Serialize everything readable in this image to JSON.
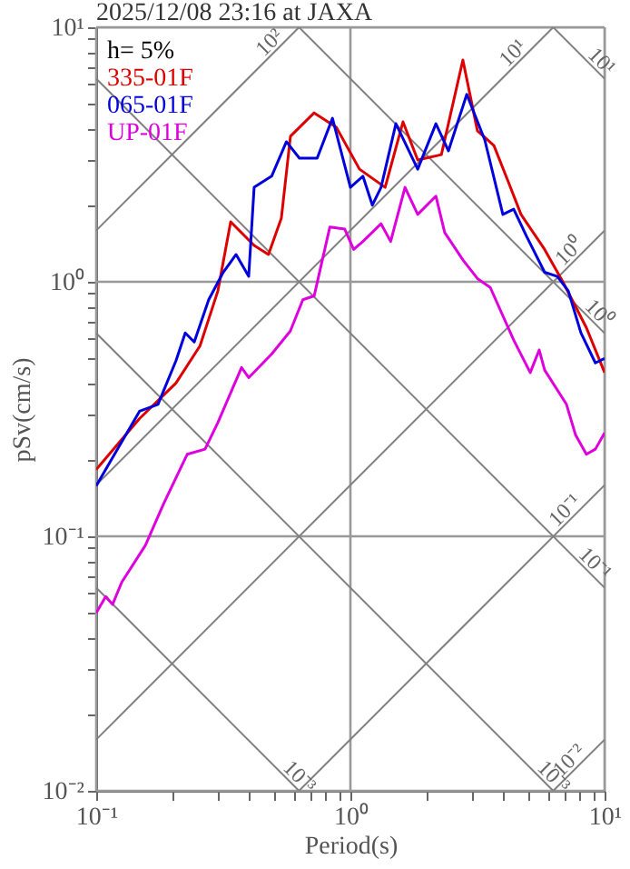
{
  "chart_data": {
    "type": "line",
    "title": "2025/12/08 23:16 at JAXA",
    "xlabel": "Period(s)",
    "ylabel": "pSv(cm/s)",
    "log": "xy",
    "grid": true,
    "legend": "top left",
    "line_style": "solid",
    "marker": "none",
    "xlim": [
      0.1,
      10
    ],
    "ylim": [
      0.01,
      10
    ],
    "xticks": [
      {
        "value": 0.1,
        "label": "10⁻¹"
      },
      {
        "value": 0.2,
        "label": null
      },
      {
        "value": 0.3,
        "label": null
      },
      {
        "value": 0.4,
        "label": null
      },
      {
        "value": 0.5,
        "label": null
      },
      {
        "value": 0.6,
        "label": null
      },
      {
        "value": 0.7,
        "label": null
      },
      {
        "value": 0.8,
        "label": null
      },
      {
        "value": 0.9,
        "label": null
      },
      {
        "value": 1,
        "label": "10⁰"
      },
      {
        "value": 2,
        "label": null
      },
      {
        "value": 3,
        "label": null
      },
      {
        "value": 4,
        "label": null
      },
      {
        "value": 5,
        "label": null
      },
      {
        "value": 6,
        "label": null
      },
      {
        "value": 7,
        "label": null
      },
      {
        "value": 8,
        "label": null
      },
      {
        "value": 9,
        "label": null
      },
      {
        "value": 10,
        "label": "10¹"
      }
    ],
    "yticks": [
      {
        "value": 0.01,
        "label": "10⁻²"
      },
      {
        "value": 0.02,
        "label": null
      },
      {
        "value": 0.03,
        "label": null
      },
      {
        "value": 0.04,
        "label": null
      },
      {
        "value": 0.05,
        "label": null
      },
      {
        "value": 0.06,
        "label": null
      },
      {
        "value": 0.07,
        "label": null
      },
      {
        "value": 0.08,
        "label": null
      },
      {
        "value": 0.09,
        "label": null
      },
      {
        "value": 0.1,
        "label": "10⁻¹"
      },
      {
        "value": 0.2,
        "label": null
      },
      {
        "value": 0.3,
        "label": null
      },
      {
        "value": 0.4,
        "label": null
      },
      {
        "value": 0.5,
        "label": null
      },
      {
        "value": 0.6,
        "label": null
      },
      {
        "value": 0.7,
        "label": null
      },
      {
        "value": 0.8,
        "label": null
      },
      {
        "value": 0.9,
        "label": null
      },
      {
        "value": 1,
        "label": "10⁰"
      },
      {
        "value": 2,
        "label": null
      },
      {
        "value": 3,
        "label": null
      },
      {
        "value": 4,
        "label": null
      },
      {
        "value": 5,
        "label": null
      },
      {
        "value": 6,
        "label": null
      },
      {
        "value": 7,
        "label": null
      },
      {
        "value": 8,
        "label": null
      },
      {
        "value": 9,
        "label": null
      },
      {
        "value": 10,
        "label": "10¹"
      }
    ],
    "annotations": [
      "h= 5%",
      {
        "text": "10²",
        "x": 0.55,
        "y": 8.75
      },
      {
        "text": "10¹",
        "x": 5.0,
        "y": 7.96
      },
      {
        "text": "10¹",
        "x": 8.5,
        "y": 7.39
      },
      {
        "text": "10⁰",
        "x": 8.3,
        "y": 1.32
      },
      {
        "text": "10⁰",
        "x": 8.3,
        "y": 0.757
      },
      {
        "text": "10⁻¹",
        "x": 8.0,
        "y": 0.127
      },
      {
        "text": "10⁻¹",
        "x": 8.0,
        "y": 0.0785
      },
      {
        "text": "10⁻³",
        "x": 0.55,
        "y": 0.0114
      },
      {
        "text": "10⁻³",
        "x": 5.5,
        "y": 0.0114
      },
      {
        "text": "10⁻²",
        "x": 8.3,
        "y": 0.0132
      }
    ],
    "series": [
      {
        "type": "line",
        "color": "#808080",
        "x": [
          0.1,
          0.628
        ],
        "values": [
          1.59,
          10
        ]
      },
      {
        "type": "line",
        "color": "#808080",
        "x": [
          0.1,
          6.28
        ],
        "values": [
          0.159,
          10
        ]
      },
      {
        "type": "line",
        "color": "#808080",
        "x": [
          0.1,
          10
        ],
        "values": [
          0.0159,
          1.59
        ]
      },
      {
        "type": "line",
        "color": "#808080",
        "x": [
          0.628,
          10
        ],
        "values": [
          0.01,
          0.159
        ]
      },
      {
        "type": "line",
        "color": "#808080",
        "x": [
          6.28,
          10
        ],
        "values": [
          0.01,
          0.0159
        ]
      },
      {
        "type": "line",
        "color": "#808080",
        "x": [
          6.28,
          10
        ],
        "values": [
          10,
          6.28
        ]
      },
      {
        "type": "line",
        "color": "#808080",
        "x": [
          0.628,
          10
        ],
        "values": [
          10,
          0.628
        ]
      },
      {
        "type": "line",
        "color": "#808080",
        "x": [
          0.1,
          10
        ],
        "values": [
          6.28,
          0.0628
        ]
      },
      {
        "type": "line",
        "color": "#808080",
        "x": [
          0.1,
          6.28
        ],
        "values": [
          0.628,
          0.01
        ]
      },
      {
        "type": "line",
        "color": "#808080",
        "x": [
          0.1,
          0.628
        ],
        "values": [
          0.0628,
          0.01
        ]
      },
      {
        "name": "335-01F",
        "color": "#dd0000",
        "x": [
          0.1,
          0.148,
          0.206,
          0.256,
          0.301,
          0.338,
          0.418,
          0.476,
          0.535,
          0.581,
          0.72,
          0.88,
          1.086,
          1.37,
          1.61,
          1.84,
          2.28,
          2.77,
          3.16,
          3.67,
          4.18,
          4.69,
          5.81,
          6.85,
          8.48,
          10
        ],
        "values": [
          0.183,
          0.29,
          0.4,
          0.56,
          0.92,
          1.72,
          1.39,
          1.28,
          1.78,
          3.73,
          4.61,
          4.05,
          2.77,
          2.35,
          4.25,
          3.01,
          3.16,
          7.44,
          3.92,
          3.43,
          2.47,
          1.84,
          1.34,
          1.0,
          0.66,
          0.44
        ]
      },
      {
        "name": "065-01F",
        "color": "#0000dd",
        "x": [
          0.1,
          0.148,
          0.175,
          0.206,
          0.224,
          0.243,
          0.277,
          0.316,
          0.355,
          0.398,
          0.418,
          0.49,
          0.56,
          0.63,
          0.74,
          0.85,
          1.0,
          1.12,
          1.22,
          1.32,
          1.51,
          1.84,
          2.17,
          2.43,
          2.87,
          3.38,
          3.98,
          4.39,
          4.93,
          5.81,
          6.52,
          7.2,
          8.07,
          9.2,
          10
        ],
        "values": [
          0.158,
          0.31,
          0.33,
          0.49,
          0.63,
          0.58,
          0.85,
          1.09,
          1.28,
          1.05,
          2.35,
          2.6,
          3.55,
          3.06,
          3.06,
          4.39,
          2.35,
          2.6,
          2.0,
          2.35,
          4.18,
          2.77,
          4.18,
          3.27,
          5.45,
          3.6,
          1.84,
          1.93,
          1.51,
          1.09,
          1.05,
          0.92,
          0.63,
          0.48,
          0.5
        ]
      },
      {
        "name": "UP-01F",
        "color": "#dd00dd",
        "x": [
          0.1,
          0.109,
          0.116,
          0.126,
          0.156,
          0.184,
          0.228,
          0.268,
          0.301,
          0.373,
          0.398,
          0.49,
          0.58,
          0.65,
          0.72,
          0.83,
          0.95,
          1.03,
          1.12,
          1.32,
          1.44,
          1.64,
          1.84,
          2.17,
          2.35,
          2.77,
          3.16,
          3.55,
          4.39,
          5.1,
          5.53,
          5.81,
          7.08,
          7.69,
          8.48,
          9.2,
          10
        ],
        "values": [
          0.05,
          0.058,
          0.054,
          0.066,
          0.092,
          0.134,
          0.21,
          0.22,
          0.28,
          0.46,
          0.42,
          0.52,
          0.64,
          0.85,
          0.88,
          1.64,
          1.61,
          1.34,
          1.44,
          1.69,
          1.44,
          2.35,
          1.84,
          2.17,
          1.56,
          1.22,
          1.03,
          0.95,
          0.59,
          0.44,
          0.54,
          0.45,
          0.33,
          0.25,
          0.21,
          0.22,
          0.255
        ]
      }
    ]
  }
}
